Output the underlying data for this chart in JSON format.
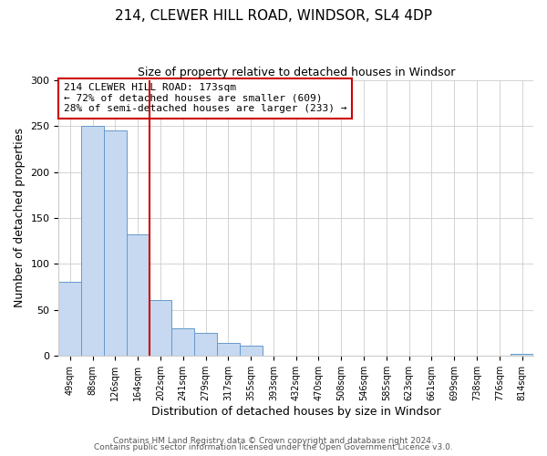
{
  "title": "214, CLEWER HILL ROAD, WINDSOR, SL4 4DP",
  "subtitle": "Size of property relative to detached houses in Windsor",
  "xlabel": "Distribution of detached houses by size in Windsor",
  "ylabel": "Number of detached properties",
  "bar_labels": [
    "49sqm",
    "88sqm",
    "126sqm",
    "164sqm",
    "202sqm",
    "241sqm",
    "279sqm",
    "317sqm",
    "355sqm",
    "393sqm",
    "432sqm",
    "470sqm",
    "508sqm",
    "546sqm",
    "585sqm",
    "623sqm",
    "661sqm",
    "699sqm",
    "738sqm",
    "776sqm",
    "814sqm"
  ],
  "bar_values": [
    80,
    250,
    245,
    132,
    60,
    30,
    25,
    14,
    11,
    0,
    0,
    0,
    0,
    0,
    0,
    0,
    0,
    0,
    0,
    0,
    2
  ],
  "bar_color": "#c6d9f0",
  "bar_edge_color": "#6699cc",
  "vline_x": 3.5,
  "vline_color": "#cc0000",
  "annotation_text": "214 CLEWER HILL ROAD: 173sqm\n← 72% of detached houses are smaller (609)\n28% of semi-detached houses are larger (233) →",
  "annotation_box_color": "#ffffff",
  "annotation_box_edge": "#cc0000",
  "ylim": [
    0,
    300
  ],
  "yticks": [
    0,
    50,
    100,
    150,
    200,
    250,
    300
  ],
  "footer_line1": "Contains HM Land Registry data © Crown copyright and database right 2024.",
  "footer_line2": "Contains public sector information licensed under the Open Government Licence v3.0.",
  "background_color": "#ffffff",
  "grid_color": "#cccccc",
  "title_fontsize": 11,
  "subtitle_fontsize": 9,
  "annotation_fontsize": 8,
  "xlabel_fontsize": 9,
  "ylabel_fontsize": 9,
  "xtick_fontsize": 7,
  "ytick_fontsize": 8,
  "footer_fontsize": 6.5
}
